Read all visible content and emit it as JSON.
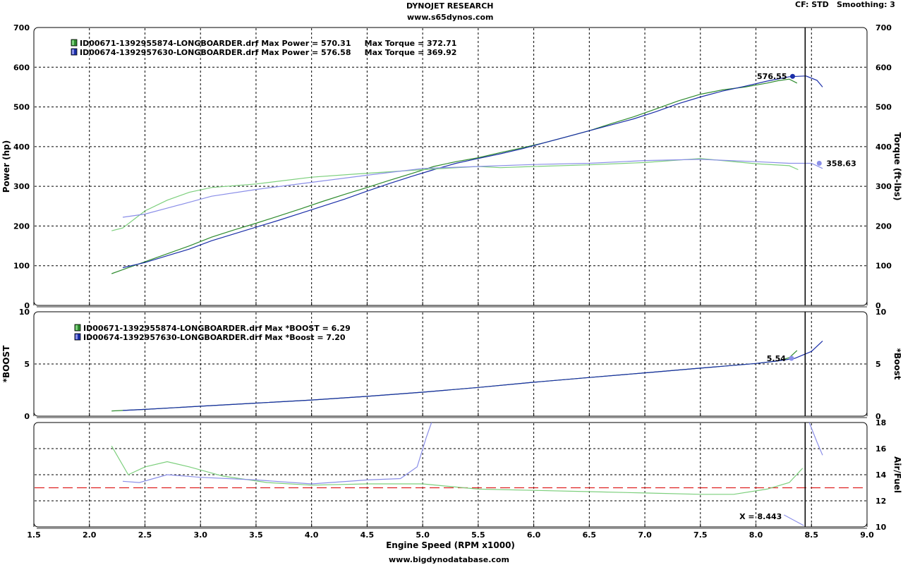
{
  "header": {
    "title": "DYNOJET RESEARCH",
    "subtitle": "www.s65dynos.com",
    "cf": "CF: STD",
    "smoothing": "Smoothing: 3",
    "footer": "www.bigdynodatabase.com"
  },
  "colors": {
    "run1": "#2e8b2e",
    "run1_light": "#7ccf7c",
    "run2": "#1a2ea8",
    "run2_light": "#8a8ee8",
    "afr_target": "#dd2222",
    "grid": "#000000"
  },
  "chart_data": [
    {
      "type": "line",
      "panel": "power-torque",
      "ylabel": "Power (hp)",
      "y2label": "Torque (ft-lbs)",
      "ylim": [
        0,
        700
      ],
      "xlim": [
        1.5,
        9.0
      ],
      "grid": true,
      "legend": [
        "ID00671-1392955874-LONGBOARDER.drf Max Power = 570.31     Max Torque = 372.71",
        "ID00674-1392957630-LONGBOARDER.drf Max Power = 576.58     Max Torque = 369.92"
      ],
      "annotations": [
        {
          "text": "576.55",
          "x": 8.33,
          "y": 577
        },
        {
          "text": "358.63",
          "x": 8.57,
          "y": 358
        }
      ],
      "series": [
        {
          "role": "power-run1",
          "x": [
            2.2,
            2.3,
            2.5,
            2.7,
            2.9,
            3.1,
            3.3,
            3.5,
            3.7,
            3.9,
            4.1,
            4.3,
            4.5,
            4.7,
            4.9,
            5.1,
            5.3,
            5.5,
            5.7,
            5.9,
            6.1,
            6.3,
            6.5,
            6.7,
            6.9,
            7.1,
            7.3,
            7.5,
            7.7,
            7.9,
            8.1,
            8.2,
            8.3,
            8.37
          ],
          "y": [
            80,
            90,
            110,
            130,
            150,
            172,
            190,
            207,
            225,
            243,
            262,
            280,
            297,
            315,
            332,
            350,
            362,
            372,
            385,
            397,
            410,
            425,
            440,
            458,
            475,
            495,
            515,
            532,
            543,
            550,
            560,
            566,
            570,
            560
          ]
        },
        {
          "role": "power-run2",
          "x": [
            2.3,
            2.5,
            2.7,
            2.9,
            3.1,
            3.3,
            3.5,
            3.7,
            3.9,
            4.1,
            4.3,
            4.5,
            4.7,
            4.9,
            5.1,
            5.3,
            5.5,
            5.7,
            5.9,
            6.1,
            6.3,
            6.5,
            6.7,
            6.9,
            7.1,
            7.3,
            7.5,
            7.7,
            7.9,
            8.1,
            8.3,
            8.45,
            8.55,
            8.6
          ],
          "y": [
            95,
            108,
            125,
            142,
            163,
            180,
            197,
            214,
            232,
            250,
            268,
            288,
            307,
            325,
            342,
            358,
            370,
            382,
            395,
            410,
            425,
            440,
            455,
            470,
            488,
            508,
            525,
            540,
            552,
            565,
            576,
            578,
            567,
            550
          ]
        },
        {
          "role": "torque-run1",
          "x": [
            2.2,
            2.3,
            2.5,
            2.7,
            2.9,
            3.1,
            3.5,
            4.0,
            4.5,
            5.0,
            5.5,
            5.7,
            6.0,
            6.5,
            7.0,
            7.5,
            8.0,
            8.3,
            8.38
          ],
          "y": [
            188,
            195,
            238,
            265,
            285,
            297,
            306,
            323,
            333,
            342,
            350,
            347,
            350,
            354,
            360,
            370,
            357,
            352,
            342
          ]
        },
        {
          "role": "torque-run2",
          "x": [
            2.3,
            2.5,
            2.7,
            2.9,
            3.1,
            3.5,
            4.0,
            4.5,
            5.0,
            5.5,
            6.0,
            6.5,
            7.0,
            7.5,
            8.0,
            8.3,
            8.5,
            8.6
          ],
          "y": [
            222,
            230,
            245,
            260,
            275,
            292,
            310,
            328,
            345,
            350,
            355,
            358,
            365,
            368,
            362,
            358,
            358,
            345
          ]
        }
      ]
    },
    {
      "type": "line",
      "panel": "boost",
      "ylabel": "*BOOST",
      "y2label": "*Boost",
      "ylim": [
        0,
        10
      ],
      "xlim": [
        1.5,
        9.0
      ],
      "grid": true,
      "legend": [
        "ID00671-1392955874-LONGBOARDER.drf Max *BOOST = 6.29",
        "ID00674-1392957630-LONGBOARDER.drf Max *Boost = 7.20"
      ],
      "annotations": [
        {
          "text": "5.54",
          "x": 8.32,
          "y": 5.54
        }
      ],
      "series": [
        {
          "role": "boost-run1",
          "x": [
            2.2,
            2.5,
            3.0,
            3.5,
            4.0,
            4.5,
            5.0,
            5.5,
            6.0,
            6.5,
            7.0,
            7.5,
            8.0,
            8.2,
            8.3,
            8.37
          ],
          "y": [
            0.5,
            0.65,
            0.95,
            1.25,
            1.55,
            1.9,
            2.3,
            2.75,
            3.25,
            3.7,
            4.15,
            4.6,
            5.05,
            5.3,
            5.6,
            6.29
          ]
        },
        {
          "role": "boost-run2",
          "x": [
            2.3,
            2.5,
            3.0,
            3.5,
            4.0,
            4.5,
            5.0,
            5.5,
            6.0,
            6.5,
            7.0,
            7.5,
            8.0,
            8.2,
            8.35,
            8.5,
            8.6
          ],
          "y": [
            0.55,
            0.65,
            0.95,
            1.25,
            1.55,
            1.9,
            2.3,
            2.75,
            3.25,
            3.7,
            4.15,
            4.6,
            5.05,
            5.3,
            5.54,
            6.2,
            7.2
          ]
        }
      ]
    },
    {
      "type": "line",
      "panel": "air-fuel",
      "ylabel": "",
      "y2label": "Air/Fuel",
      "ylim": [
        10,
        18
      ],
      "xlim": [
        1.5,
        9.0
      ],
      "grid": true,
      "target_afr": 13.0,
      "cursor": {
        "label": "X = 8.443",
        "x": 8.443
      },
      "series": [
        {
          "role": "afr-run1",
          "x": [
            2.2,
            2.35,
            2.5,
            2.7,
            2.9,
            3.2,
            3.6,
            4.0,
            4.5,
            5.0,
            5.5,
            6.0,
            6.5,
            7.0,
            7.5,
            7.8,
            8.1,
            8.3,
            8.42
          ],
          "y": [
            16.2,
            14.0,
            14.6,
            15.0,
            14.6,
            13.9,
            13.4,
            13.2,
            13.3,
            13.3,
            12.9,
            12.8,
            12.7,
            12.6,
            12.5,
            12.5,
            12.9,
            13.4,
            14.5
          ]
        },
        {
          "role": "afr-run2",
          "x": [
            2.3,
            2.45,
            2.7,
            3.0,
            3.5,
            4.0,
            4.5,
            4.8,
            4.95,
            5.03,
            5.08
          ],
          "y": [
            13.5,
            13.4,
            14.0,
            13.8,
            13.6,
            13.3,
            13.6,
            13.7,
            14.6,
            16.8,
            18
          ]
        },
        {
          "role": "afr-run2-end",
          "x": [
            8.48,
            8.55,
            8.6
          ],
          "y": [
            18,
            16.5,
            15.5
          ]
        }
      ]
    }
  ],
  "x_axis": {
    "label": "Engine Speed (RPM x1000)",
    "ticks": [
      "1.5",
      "2.0",
      "2.5",
      "3.0",
      "3.5",
      "4.0",
      "4.5",
      "5.0",
      "5.5",
      "6.0",
      "6.5",
      "7.0",
      "7.5",
      "8.0",
      "8.5",
      "9.0"
    ]
  }
}
